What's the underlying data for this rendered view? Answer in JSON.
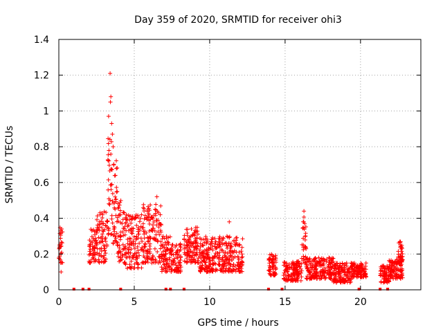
{
  "chart_data": {
    "type": "scatter",
    "title": "Day 359 of 2020, SRMTID for receiver ohi3",
    "xlabel": "GPS time / hours",
    "ylabel": "SRMTID / TECUs",
    "xlim": [
      0,
      24
    ],
    "ylim": [
      0,
      1.4
    ],
    "x_ticks": [
      0,
      5,
      10,
      15,
      20
    ],
    "x_tick_labels": [
      "0",
      "5",
      "10",
      "15",
      "20"
    ],
    "y_ticks": [
      0,
      0.2,
      0.4,
      0.6,
      0.8,
      1.0,
      1.2,
      1.4
    ],
    "y_tick_labels": [
      "0",
      "0.2",
      "0.4",
      "0.6",
      "0.8",
      "1",
      "1.2",
      "1.4"
    ],
    "grid": true,
    "marker": "+",
    "series_color": "#ff0000",
    "segments": [
      {
        "x": [
          0.0,
          0.25
        ],
        "ymin": 0.15,
        "ymax": 0.35
      },
      {
        "x": [
          2.0,
          2.5
        ],
        "ymin": 0.15,
        "ymax": 0.35
      },
      {
        "x": [
          2.5,
          3.2
        ],
        "ymin": 0.15,
        "ymax": 0.45
      },
      {
        "x": [
          3.2,
          3.5
        ],
        "ymin": 0.3,
        "ymax": 0.95
      },
      {
        "x": [
          3.5,
          3.9
        ],
        "ymin": 0.25,
        "ymax": 0.75
      },
      {
        "x": [
          3.9,
          4.4
        ],
        "ymin": 0.15,
        "ymax": 0.5
      },
      {
        "x": [
          4.4,
          5.5
        ],
        "ymin": 0.12,
        "ymax": 0.42
      },
      {
        "x": [
          5.5,
          6.8
        ],
        "ymin": 0.15,
        "ymax": 0.48
      },
      {
        "x": [
          6.8,
          7.4
        ],
        "ymin": 0.1,
        "ymax": 0.3
      },
      {
        "x": [
          7.4,
          8.1
        ],
        "ymin": 0.1,
        "ymax": 0.26
      },
      {
        "x": [
          8.3,
          9.3
        ],
        "ymin": 0.15,
        "ymax": 0.35
      },
      {
        "x": [
          9.3,
          12.2
        ],
        "ymin": 0.1,
        "ymax": 0.3
      },
      {
        "x": [
          13.9,
          14.4
        ],
        "ymin": 0.08,
        "ymax": 0.2
      },
      {
        "x": [
          14.9,
          16.1
        ],
        "ymin": 0.05,
        "ymax": 0.16
      },
      {
        "x": [
          16.1,
          16.4
        ],
        "ymin": 0.15,
        "ymax": 0.42
      },
      {
        "x": [
          16.4,
          18.2
        ],
        "ymin": 0.06,
        "ymax": 0.18
      },
      {
        "x": [
          18.2,
          19.4
        ],
        "ymin": 0.04,
        "ymax": 0.15
      },
      {
        "x": [
          19.4,
          20.4
        ],
        "ymin": 0.07,
        "ymax": 0.15
      },
      {
        "x": [
          21.3,
          21.9
        ],
        "ymin": 0.04,
        "ymax": 0.14
      },
      {
        "x": [
          21.9,
          22.8
        ],
        "ymin": 0.06,
        "ymax": 0.17
      },
      {
        "x": [
          22.5,
          22.8
        ],
        "ymin": 0.15,
        "ymax": 0.27
      }
    ],
    "zero_points": [
      1.0,
      1.6,
      2.0,
      4.1,
      7.1,
      7.4,
      8.3,
      13.9,
      14.8,
      19.9,
      21.3,
      21.8
    ],
    "outliers": [
      {
        "x": 3.4,
        "y": 1.21
      },
      {
        "x": 3.45,
        "y": 1.08
      },
      {
        "x": 3.42,
        "y": 1.05
      },
      {
        "x": 3.5,
        "y": 0.93
      },
      {
        "x": 3.3,
        "y": 0.97
      },
      {
        "x": 3.55,
        "y": 0.87
      },
      {
        "x": 3.6,
        "y": 0.8
      },
      {
        "x": 0.15,
        "y": 0.1
      },
      {
        "x": 11.3,
        "y": 0.38
      },
      {
        "x": 16.25,
        "y": 0.44
      },
      {
        "x": 6.5,
        "y": 0.52
      }
    ]
  }
}
